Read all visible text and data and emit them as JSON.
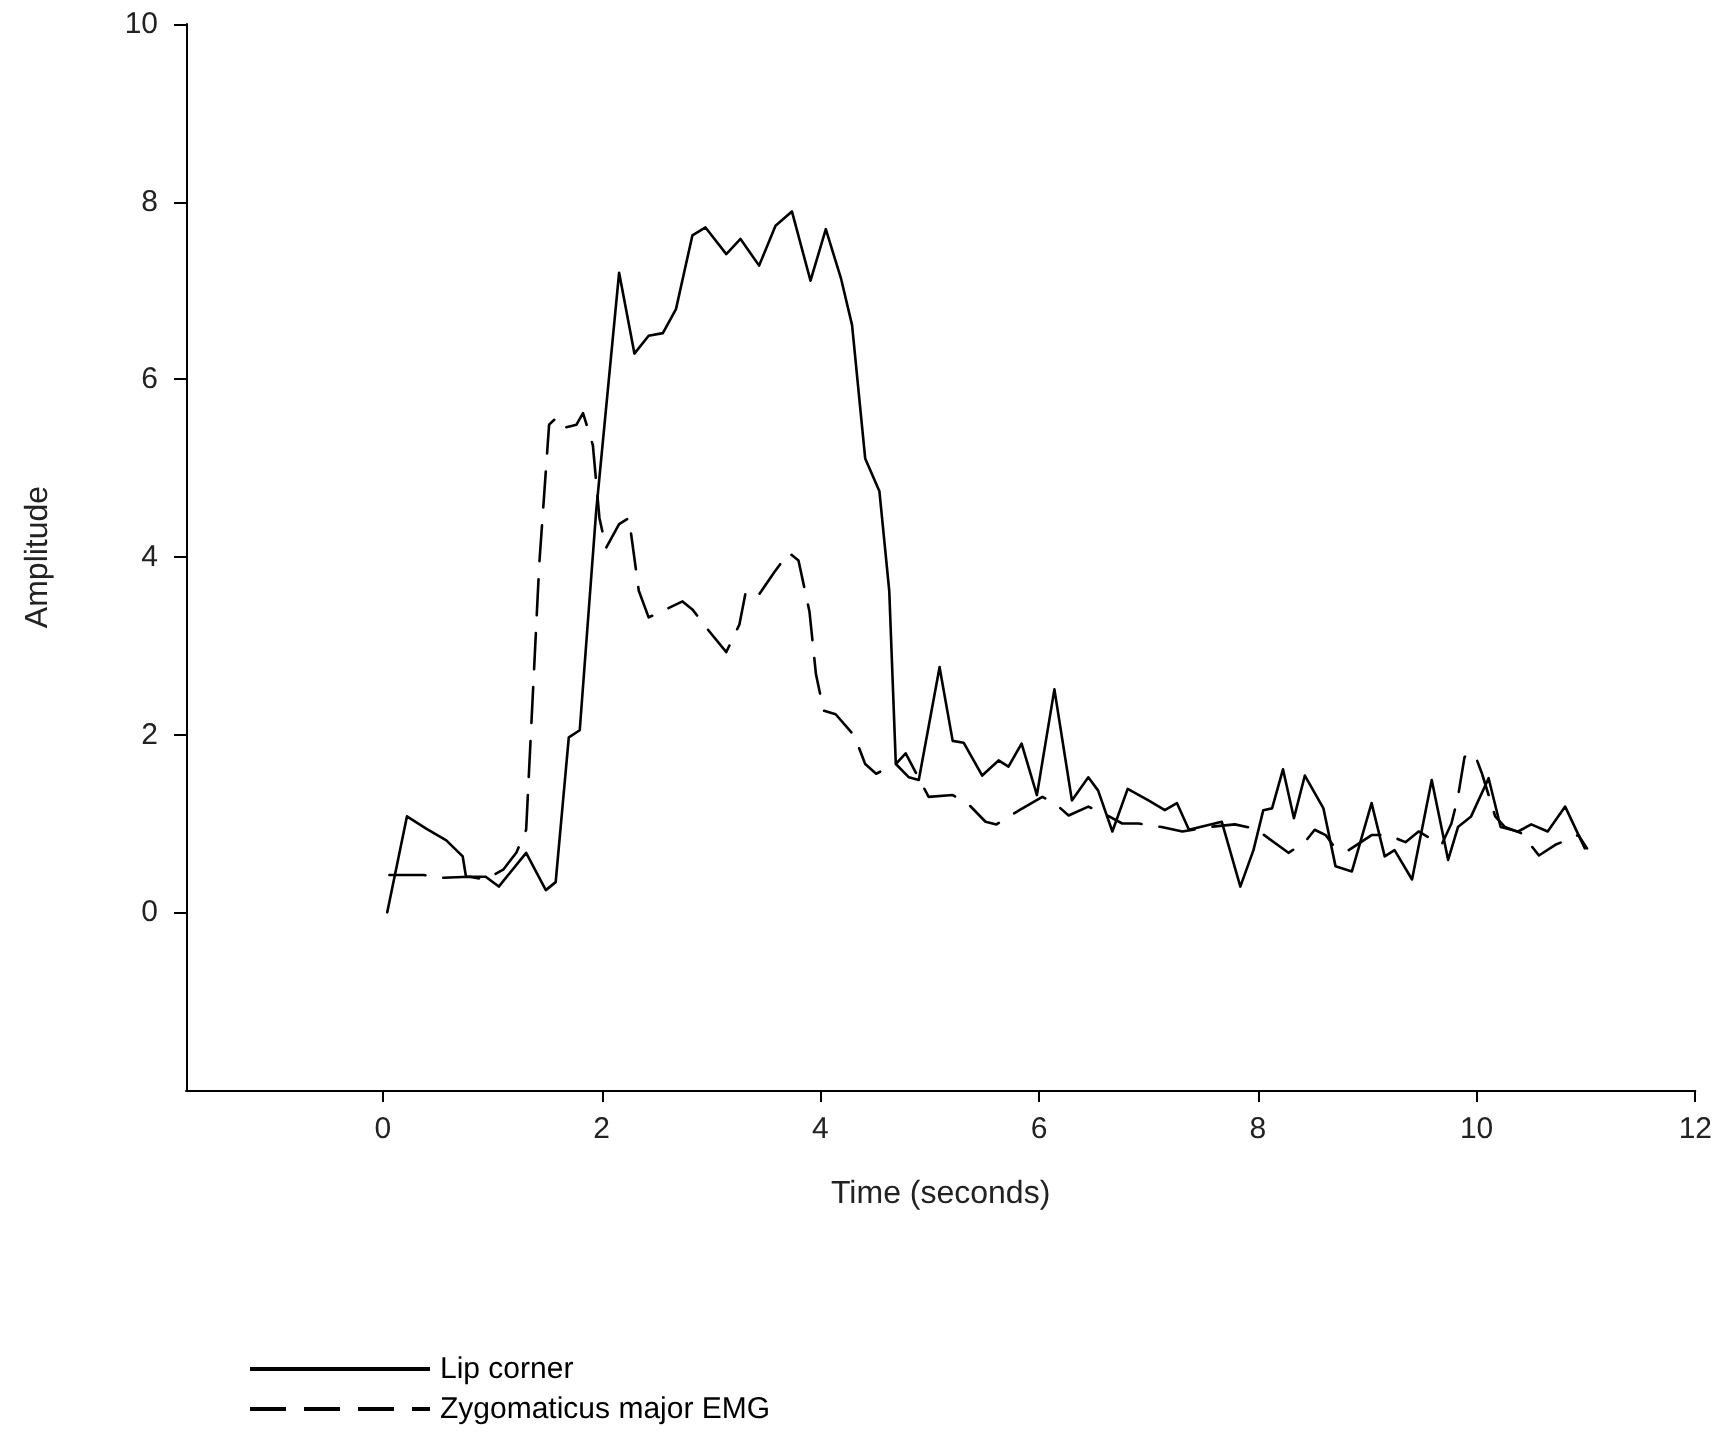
{
  "chart_data": {
    "type": "line",
    "xlabel": "Time (seconds)",
    "ylabel": "Amplitude",
    "xlim": [
      -1.8,
      12
    ],
    "xticks": [
      0,
      2,
      4,
      6,
      8,
      10,
      12
    ],
    "ylim": [
      -2,
      10
    ],
    "yticks": [
      0,
      2,
      4,
      6,
      8,
      10
    ],
    "grid": false,
    "legend": "bottom left",
    "marker": "none",
    "series": [
      {
        "name": "Lip corner",
        "color": "#000000",
        "line_style": "solid",
        "x": [
          0.04,
          0.22,
          0.4,
          0.58,
          0.73,
          0.76,
          0.94,
          1.06,
          1.31,
          1.49,
          1.58,
          1.7,
          1.8,
          1.95,
          2.16,
          2.3,
          2.43,
          2.56,
          2.68,
          2.83,
          2.95,
          3.14,
          3.27,
          3.44,
          3.59,
          3.74,
          3.91,
          4.05,
          4.19,
          4.29,
          4.41,
          4.54,
          4.63,
          4.69,
          4.81,
          4.9,
          5.09,
          5.21,
          5.31,
          5.48,
          5.63,
          5.72,
          5.84,
          5.98,
          6.14,
          6.3,
          6.45,
          6.54,
          6.67,
          6.81,
          7.0,
          7.15,
          7.26,
          7.37,
          7.67,
          7.84,
          7.96,
          8.05,
          8.13,
          8.23,
          8.33,
          8.43,
          8.6,
          8.71,
          8.86,
          9.04,
          9.16,
          9.25,
          9.41,
          9.59,
          9.74,
          9.83,
          9.95,
          10.11,
          10.22,
          10.38,
          10.5,
          10.65,
          10.81,
          10.99
        ],
        "values": [
          0,
          1.08,
          0.94,
          0.81,
          0.63,
          0.4,
          0.4,
          0.29,
          0.67,
          0.25,
          0.34,
          1.97,
          2.05,
          4.51,
          7.2,
          6.29,
          6.49,
          6.52,
          6.79,
          7.62,
          7.71,
          7.41,
          7.58,
          7.28,
          7.73,
          7.89,
          7.11,
          7.69,
          7.13,
          6.61,
          5.11,
          4.74,
          3.62,
          1.67,
          1.52,
          1.49,
          2.76,
          1.93,
          1.91,
          1.54,
          1.71,
          1.64,
          1.9,
          1.32,
          2.51,
          1.26,
          1.52,
          1.37,
          0.91,
          1.39,
          1.26,
          1.15,
          1.23,
          0.93,
          1.02,
          0.29,
          0.7,
          1.15,
          1.17,
          1.61,
          1.06,
          1.54,
          1.17,
          0.52,
          0.46,
          1.23,
          0.63,
          0.7,
          0.37,
          1.49,
          0.59,
          0.96,
          1.08,
          1.51,
          0.96,
          0.91,
          0.99,
          0.91,
          1.19,
          0.72
        ]
      },
      {
        "name": "Zygomaticus major EMG",
        "color": "#000000",
        "line_style": "dashed",
        "x": [
          0.06,
          0.37,
          0.55,
          0.79,
          0.94,
          1.1,
          1.22,
          1.31,
          1.43,
          1.52,
          1.58,
          1.64,
          1.77,
          1.83,
          1.92,
          1.98,
          2.04,
          2.16,
          2.25,
          2.34,
          2.43,
          2.62,
          2.74,
          2.83,
          2.98,
          3.14,
          3.26,
          3.32,
          3.44,
          3.58,
          3.71,
          3.8,
          3.9,
          3.96,
          4.03,
          4.14,
          4.31,
          4.41,
          4.51,
          4.69,
          4.78,
          4.99,
          5.21,
          5.36,
          5.51,
          5.61,
          5.82,
          6.03,
          6.16,
          6.27,
          6.45,
          6.64,
          6.76,
          6.91,
          7.12,
          7.31,
          7.55,
          7.79,
          7.98,
          8.28,
          8.43,
          8.52,
          8.62,
          8.71,
          8.83,
          9.04,
          9.19,
          9.35,
          9.47,
          9.68,
          9.77,
          9.83,
          9.89,
          9.98,
          10.05,
          10.17,
          10.26,
          10.41,
          10.57,
          10.72,
          10.93,
          11.01
        ],
        "values": [
          0.42,
          0.42,
          0.39,
          0.4,
          0.37,
          0.48,
          0.67,
          0.93,
          3.92,
          5.49,
          5.56,
          5.45,
          5.49,
          5.62,
          5.26,
          4.44,
          4.1,
          4.37,
          4.44,
          3.62,
          3.32,
          3.43,
          3.5,
          3.41,
          3.17,
          2.93,
          3.24,
          3.62,
          3.58,
          3.83,
          4.05,
          3.96,
          3.39,
          2.68,
          2.27,
          2.23,
          1.99,
          1.67,
          1.56,
          1.67,
          1.79,
          1.3,
          1.32,
          1.21,
          1.02,
          0.99,
          1.15,
          1.3,
          1.21,
          1.09,
          1.19,
          1.08,
          1.0,
          1.0,
          0.96,
          0.91,
          0.96,
          0.99,
          0.94,
          0.67,
          0.79,
          0.93,
          0.87,
          0.72,
          0.7,
          0.87,
          0.87,
          0.79,
          0.91,
          0.76,
          1.0,
          1.3,
          1.75,
          1.79,
          1.56,
          1.08,
          0.96,
          0.89,
          0.64,
          0.76,
          0.87,
          0.72
        ]
      }
    ]
  }
}
